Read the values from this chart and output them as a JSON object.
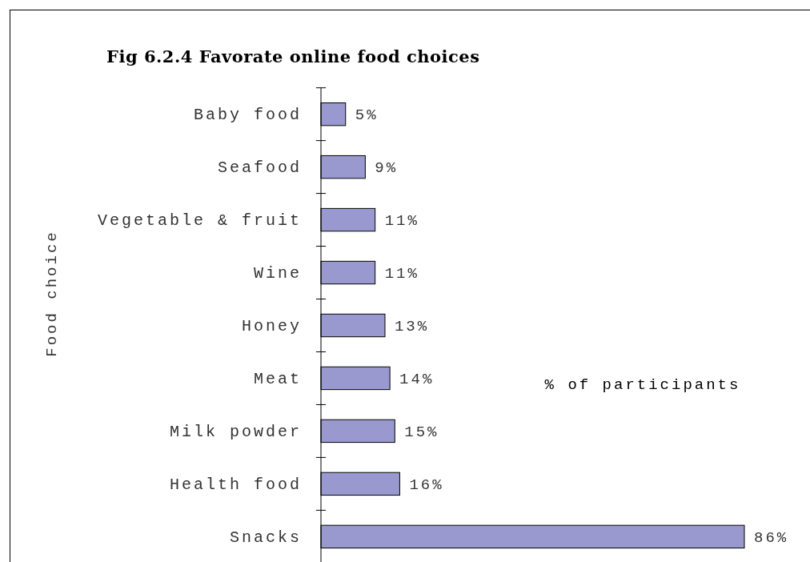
{
  "chart_data": {
    "type": "bar",
    "orientation": "horizontal",
    "title": "Fig 6.2.4 Favorate online food choices",
    "xlabel": "% of participants",
    "ylabel": "Food choice",
    "categories": [
      "Baby food",
      "Seafood",
      "Vegetable & fruit",
      "Wine",
      "Honey",
      "Meat",
      "Milk powder",
      "Health food",
      "Snacks"
    ],
    "values": [
      5,
      9,
      11,
      11,
      13,
      14,
      15,
      16,
      86
    ],
    "value_labels": [
      "5%",
      "9%",
      "11%",
      "11%",
      "13%",
      "14%",
      "15%",
      "16%",
      "86%"
    ],
    "color": "#9999d0"
  }
}
